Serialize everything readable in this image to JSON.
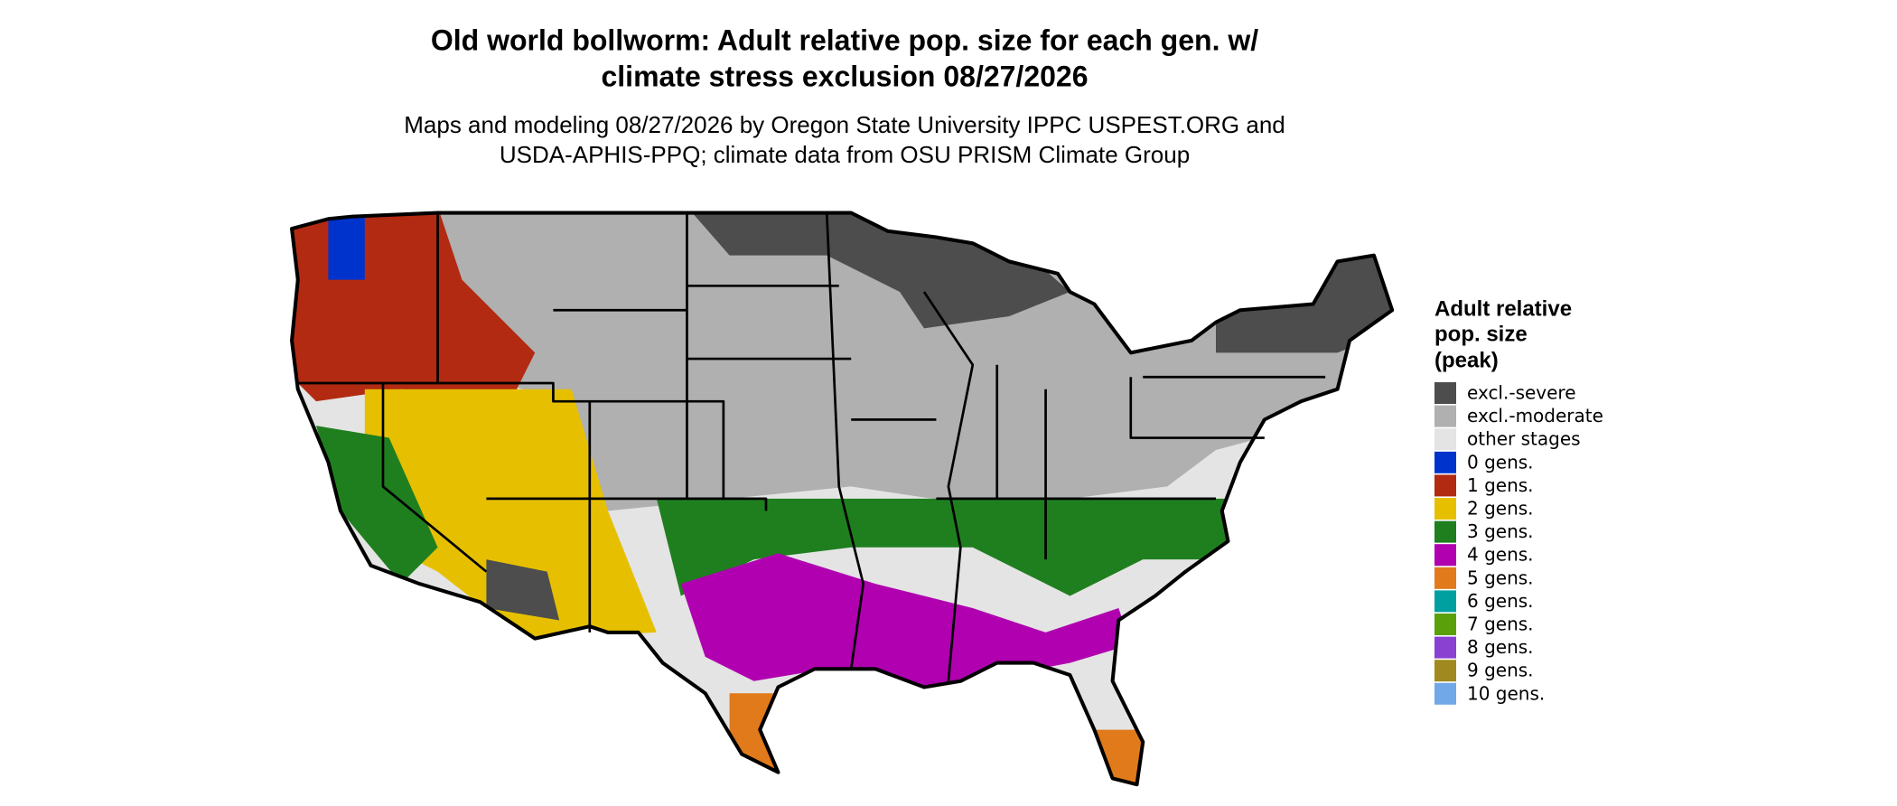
{
  "title_lines": [
    "Old world bollworm: Adult relative pop. size for each gen. w/",
    "climate stress exclusion 08/27/2026"
  ],
  "subtitle_lines": [
    "Maps and modeling 08/27/2026 by Oregon State University IPPC USPEST.ORG and",
    "USDA-APHIS-PPQ; climate data from OSU PRISM Climate Group"
  ],
  "legend": {
    "title_lines": [
      "Adult relative",
      "pop. size",
      "(peak)"
    ],
    "items": [
      {
        "label": "excl.-severe",
        "color": "#4d4d4d"
      },
      {
        "label": "excl.-moderate",
        "color": "#b0b0b0"
      },
      {
        "label": "other stages",
        "color": "#e4e4e4"
      },
      {
        "label": "0 gens.",
        "color": "#0033cc"
      },
      {
        "label": "1 gens.",
        "color": "#b22a12"
      },
      {
        "label": "2 gens.",
        "color": "#e6c000"
      },
      {
        "label": "3 gens.",
        "color": "#1f7f1f"
      },
      {
        "label": "4 gens.",
        "color": "#b000b0"
      },
      {
        "label": "5 gens.",
        "color": "#e07a1a"
      },
      {
        "label": "6 gens.",
        "color": "#00a0a0"
      },
      {
        "label": "7 gens.",
        "color": "#5aa00a"
      },
      {
        "label": "8 gens.",
        "color": "#8a40d0"
      },
      {
        "label": "9 gens.",
        "color": "#a08a20"
      },
      {
        "label": "10 gens.",
        "color": "#70a8e8"
      }
    ]
  }
}
